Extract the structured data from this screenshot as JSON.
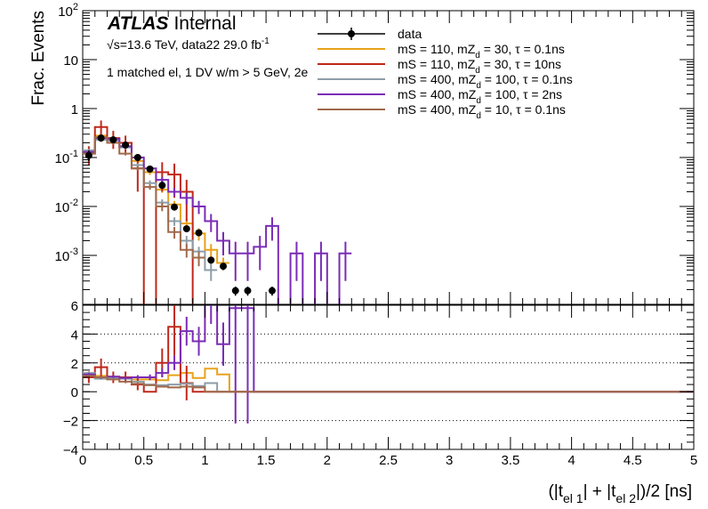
{
  "chart_data": {
    "type": "histogram",
    "title": "",
    "experiment_label": {
      "brand": "ATLAS",
      "status": "Internal"
    },
    "energy_label": {
      "sqrt": "√",
      "text": "s=13.6 TeV, data22 29.0 fb",
      "sup": "-1"
    },
    "selection_label": "1 matched el, 1 DV w/m > 5 GeV, 2e",
    "xlabel": {
      "open": "(|t",
      "sub1": "el 1",
      "mid": "| + |t",
      "sub2": "el 2",
      "close": "|)/2 [ns]"
    },
    "ylabel_top": "Frac. Events",
    "xlim": [
      0,
      5
    ],
    "top": {
      "scale": "log",
      "ylim": [
        0.0001,
        100
      ],
      "y_ticks": [
        {
          "v": 0.001,
          "base": "10",
          "exp": "-3"
        },
        {
          "v": 0.01,
          "base": "10",
          "exp": "-2"
        },
        {
          "v": 0.1,
          "base": "10",
          "exp": "-1"
        },
        {
          "v": 1,
          "base": "1",
          "exp": ""
        },
        {
          "v": 10,
          "base": "10",
          "exp": ""
        },
        {
          "v": 100,
          "base": "10",
          "exp": "2"
        }
      ]
    },
    "bottom": {
      "ylim": [
        -4,
        6
      ],
      "y_ticks": [
        "-4",
        "-2",
        "0",
        "2",
        "4",
        "6"
      ],
      "dotted_lines": [
        -2,
        2,
        4
      ]
    },
    "x_ticks": [
      "0",
      "0.5",
      "1",
      "1.5",
      "2",
      "2.5",
      "3",
      "3.5",
      "4",
      "4.5",
      "5"
    ],
    "legend": {
      "position": "top-right",
      "entries": [
        {
          "key": "data",
          "label": {
            "pre": "data",
            "sub": "",
            "post": ""
          }
        },
        {
          "key": "s1",
          "label": {
            "pre": "mS = 110, mZ",
            "sub": "d",
            "post": " = 30, τ = 0.1ns"
          }
        },
        {
          "key": "s2",
          "label": {
            "pre": "mS = 110, mZ",
            "sub": "d",
            "post": " = 30, τ = 10ns"
          }
        },
        {
          "key": "s3",
          "label": {
            "pre": "mS = 400, mZ",
            "sub": "d",
            "post": " = 100, τ = 0.1ns"
          }
        },
        {
          "key": "s4",
          "label": {
            "pre": "mS = 400, mZ",
            "sub": "d",
            "post": " = 100, τ = 2ns"
          }
        },
        {
          "key": "s5",
          "label": {
            "pre": "mS = 400, mZ",
            "sub": "d",
            "post": " = 10, τ = 0.1ns"
          }
        }
      ]
    },
    "bin_width": 0.1,
    "data": {
      "color": "#000000",
      "points": [
        {
          "x": 0.05,
          "y": 0.11,
          "ylow": 0.085,
          "yhigh": 0.14
        },
        {
          "x": 0.15,
          "y": 0.25,
          "ylow": 0.21,
          "yhigh": 0.29
        },
        {
          "x": 0.25,
          "y": 0.23,
          "ylow": 0.2,
          "yhigh": 0.26
        },
        {
          "x": 0.35,
          "y": 0.18,
          "ylow": 0.155,
          "yhigh": 0.2
        },
        {
          "x": 0.45,
          "y": 0.1,
          "ylow": 0.085,
          "yhigh": 0.115
        },
        {
          "x": 0.55,
          "y": 0.058,
          "ylow": 0.05,
          "yhigh": 0.066
        },
        {
          "x": 0.65,
          "y": 0.027,
          "ylow": 0.023,
          "yhigh": 0.031
        },
        {
          "x": 0.75,
          "y": 0.0097,
          "ylow": 0.0085,
          "yhigh": 0.011
        },
        {
          "x": 0.85,
          "y": 0.0035,
          "ylow": 0.003,
          "yhigh": 0.004
        },
        {
          "x": 0.95,
          "y": 0.0029,
          "ylow": 0.0025,
          "yhigh": 0.0033
        },
        {
          "x": 1.05,
          "y": 0.0008,
          "ylow": 0.00068,
          "yhigh": 0.00092
        },
        {
          "x": 1.15,
          "y": 0.0006,
          "ylow": 0.0005,
          "yhigh": 0.0007
        },
        {
          "x": 1.25,
          "y": 0.00019,
          "ylow": 0.00015,
          "yhigh": 0.00023
        },
        {
          "x": 1.35,
          "y": 0.00019,
          "ylow": 0.00015,
          "yhigh": 0.00023
        },
        {
          "x": 1.55,
          "y": 0.00019,
          "ylow": 0.00015,
          "yhigh": 0.00023
        }
      ]
    },
    "series": [
      {
        "key": "s1",
        "color": "#e8a21b",
        "values": [
          0.13,
          0.28,
          0.24,
          0.17,
          0.085,
          0.05,
          0.022,
          0.011,
          0.0045,
          0.0028,
          0.0013,
          0.0007
        ],
        "errors": [
          0.01,
          0.02,
          0.02,
          0.015,
          0.008,
          0.006,
          0.003,
          0.002,
          0.001,
          0.0008,
          0.0004,
          0.0002
        ],
        "ratio": [
          1.2,
          1.1,
          1.05,
          0.95,
          0.85,
          0.85,
          0.8,
          1.15,
          1.3,
          0.95,
          1.6,
          1.2
        ]
      },
      {
        "key": "s2",
        "color": "#c0281a",
        "values": [
          0.12,
          0.42,
          0.25,
          0.2,
          0.06,
          1e-05,
          0.05,
          0.045,
          0.02,
          1e-05,
          1e-05,
          1e-05
        ],
        "errors": [
          0.05,
          0.15,
          0.1,
          0.08,
          0.04,
          0,
          0.03,
          0.03,
          0.015,
          0,
          0,
          0
        ],
        "ratio": [
          1.0,
          1.7,
          1.0,
          1.0,
          0.5,
          0,
          2.0,
          4.5,
          0.6,
          0,
          0,
          0
        ],
        "ratio_errors": [
          0.4,
          0.6,
          0.4,
          0.4,
          0.4,
          0,
          1.0,
          2.0,
          1.2,
          0,
          0,
          0
        ]
      },
      {
        "key": "s3",
        "color": "#8e9da8",
        "values": [
          0.14,
          0.23,
          0.22,
          0.16,
          0.07,
          0.03,
          0.012,
          0.005,
          0.002,
          0.0012,
          0.0005
        ],
        "errors": [
          0.01,
          0.015,
          0.015,
          0.01,
          0.006,
          0.004,
          0.002,
          0.001,
          0.0005,
          0.0003,
          0.0002
        ],
        "ratio": [
          1.3,
          0.9,
          0.95,
          0.9,
          0.7,
          0.5,
          0.45,
          0.5,
          0.55,
          0.4,
          0.6
        ]
      },
      {
        "key": "s4",
        "color": "#7b2cb6",
        "values": [
          0.13,
          0.25,
          0.24,
          0.17,
          0.1,
          0.06,
          0.035,
          0.02,
          0.015,
          0.01,
          0.005,
          0.002,
          0.0011,
          0.0011,
          0.0015,
          0.004,
          1e-05,
          0.0011,
          1e-05,
          0.0011,
          1e-05,
          0.0011
        ],
        "errors": [
          0.01,
          0.015,
          0.015,
          0.01,
          0.008,
          0.006,
          0.005,
          0.004,
          0.004,
          0.003,
          0.002,
          0.001,
          0.0008,
          0.0008,
          0.001,
          0.002,
          0,
          0.0008,
          0,
          0.0008,
          0,
          0.0008
        ],
        "ratio": [
          1.2,
          1.0,
          1.05,
          0.95,
          1.0,
          1.0,
          1.3,
          2.0,
          4.2,
          3.5,
          6.2,
          3.3,
          5.8,
          5.8
        ],
        "ratio_errors": [
          0.1,
          0.1,
          0.1,
          0.1,
          0.15,
          0.2,
          0.3,
          0.5,
          1.0,
          1.0,
          1.5,
          1.5,
          8.0,
          8.0
        ]
      },
      {
        "key": "s5",
        "color": "#a0694a",
        "values": [
          0.12,
          0.26,
          0.2,
          0.12,
          0.06,
          0.025,
          0.01,
          0.003,
          0.0013,
          0.0009
        ],
        "errors": [
          0.01,
          0.02,
          0.015,
          0.01,
          0.006,
          0.003,
          0.002,
          0.0008,
          0.0004,
          0.0003
        ],
        "ratio": [
          1.1,
          1.0,
          0.85,
          0.7,
          0.55,
          0.45,
          0.35,
          0.3,
          0.35,
          0.3
        ]
      }
    ]
  }
}
